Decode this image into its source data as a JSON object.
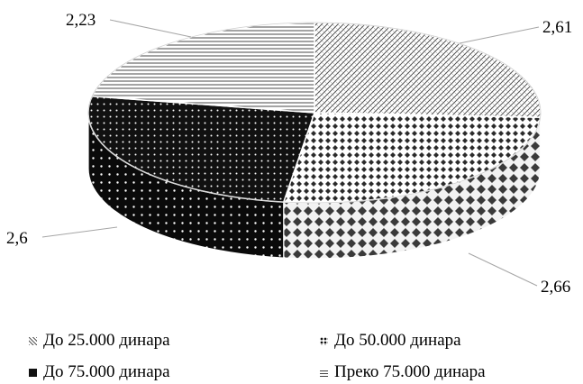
{
  "chart_data": {
    "type": "pie",
    "style": "3d",
    "values": [
      2.61,
      2.66,
      2.6,
      2.23
    ],
    "data_labels": [
      "2,61",
      "2,66",
      "2,6",
      "2,23"
    ],
    "categories": [
      "До 25.000 динара",
      "До 50.000 динара",
      "До 75.000 динара",
      "Преко 75.000 динара"
    ],
    "legend": {
      "placement": "bottom",
      "items": [
        {
          "label": "До 25.000 динара",
          "icon": "diagonal-pattern-swatch"
        },
        {
          "label": "До 50.000 динара",
          "icon": "diamond-pattern-swatch"
        },
        {
          "label": "До 75.000 динара",
          "icon": "dark-dotted-swatch"
        },
        {
          "label": "Преко 75.000 динара",
          "icon": "horizontal-lines-swatch"
        }
      ]
    },
    "colors": [
      "#ffffff",
      "#2b2b2b",
      "#111111",
      "#ffffff"
    ]
  }
}
